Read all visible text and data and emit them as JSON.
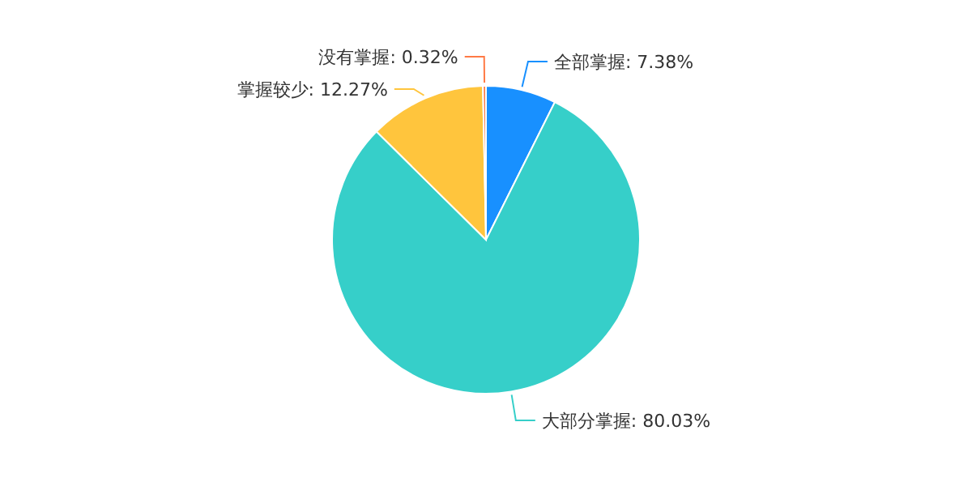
{
  "chart_data": {
    "type": "pie",
    "categories": [
      "全部掌握",
      "大部分掌握",
      "掌握较少",
      "没有掌握"
    ],
    "values": [
      7.38,
      80.03,
      12.27,
      0.32
    ],
    "value_labels": [
      "7.38%",
      "80.03%",
      "12.27%",
      "0.32%"
    ],
    "colors": [
      "#1890ff",
      "#36cfc9",
      "#ffc53d",
      "#ff7a45"
    ]
  }
}
